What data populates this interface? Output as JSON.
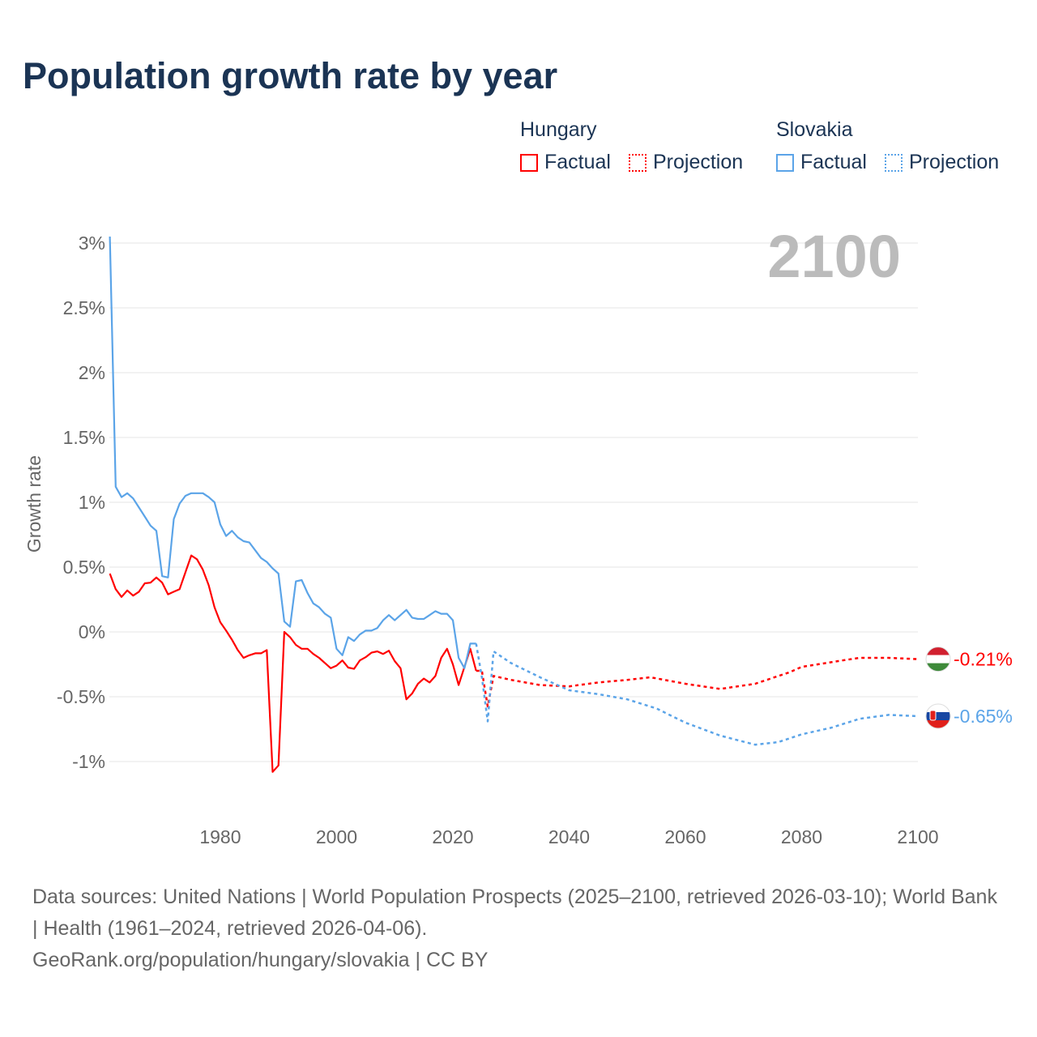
{
  "title": "Population growth rate by year",
  "legend": {
    "groups": [
      {
        "name": "Hungary",
        "factual": "Factual",
        "projection": "Projection",
        "color": "#ff0000"
      },
      {
        "name": "Slovakia",
        "factual": "Factual",
        "projection": "Projection",
        "color": "#5ba4e8"
      }
    ]
  },
  "year_label": "2100",
  "source_line1": "Data sources: United Nations | World Population Prospects (2025–2100, retrieved 2026-03-10); World Bank | Health (1961–2024, retrieved 2026-04-06).",
  "source_line2": "GeoRank.org/population/hungary/slovakia | CC BY",
  "chart_data": {
    "type": "line",
    "title": "Population growth rate by year",
    "ylabel": "Growth rate",
    "xlim": [
      1961,
      2100
    ],
    "ylim": [
      -1.25,
      3.0
    ],
    "xticks": [
      1980,
      2000,
      2020,
      2040,
      2060,
      2080,
      2100
    ],
    "xtick_labels": [
      "1980",
      "2000",
      "2020",
      "2040",
      "2060",
      "2080",
      "2100"
    ],
    "yticks": [
      3,
      2.5,
      2,
      1.5,
      1,
      0.5,
      0,
      -0.5,
      -1
    ],
    "ytick_labels": [
      "3%",
      "2.5%",
      "2%",
      "1.5%",
      "1%",
      "0.5%",
      "0%",
      "-0.5%",
      "-1%"
    ],
    "grid": true,
    "series": [
      {
        "name": "Hungary Factual",
        "country": "Hungary",
        "style": "solid",
        "color": "#ff0000",
        "x0": 1961,
        "values": [
          0.45,
          0.33,
          0.27,
          0.32,
          0.28,
          0.31,
          0.375,
          0.38,
          0.42,
          0.38,
          0.29,
          0.31,
          0.33,
          0.46,
          0.59,
          0.56,
          0.48,
          0.36,
          0.19,
          0.075,
          0.01,
          -0.06,
          -0.14,
          -0.2,
          -0.18,
          -0.165,
          -0.165,
          -0.14,
          -1.08,
          -1.03,
          0.0,
          -0.04,
          -0.1,
          -0.13,
          -0.13,
          -0.17,
          -0.2,
          -0.24,
          -0.28,
          -0.26,
          -0.22,
          -0.275,
          -0.285,
          -0.22,
          -0.195,
          -0.16,
          -0.15,
          -0.17,
          -0.145,
          -0.225,
          -0.28,
          -0.52,
          -0.475,
          -0.4,
          -0.36,
          -0.39,
          -0.34,
          -0.2,
          -0.13,
          -0.25,
          -0.41,
          -0.27,
          -0.13,
          -0.3
        ]
      },
      {
        "name": "Hungary Projection",
        "country": "Hungary",
        "style": "dotted",
        "color": "#ff0000",
        "x": [
          2024,
          2025,
          2026,
          2027,
          2030,
          2035,
          2040,
          2045,
          2050,
          2054,
          2060,
          2066,
          2072,
          2078,
          2080,
          2087,
          2090,
          2095,
          2100
        ],
        "values": [
          -0.3,
          -0.3,
          -0.575,
          -0.34,
          -0.37,
          -0.41,
          -0.42,
          -0.39,
          -0.37,
          -0.35,
          -0.4,
          -0.44,
          -0.4,
          -0.31,
          -0.27,
          -0.22,
          -0.2,
          -0.2,
          -0.21
        ]
      },
      {
        "name": "Slovakia Factual",
        "country": "Slovakia",
        "style": "solid",
        "color": "#5ba4e8",
        "x0": 1961,
        "values": [
          3.05,
          1.12,
          1.04,
          1.07,
          1.03,
          0.96,
          0.89,
          0.82,
          0.78,
          0.43,
          0.42,
          0.87,
          0.99,
          1.05,
          1.07,
          1.07,
          1.07,
          1.04,
          1.0,
          0.83,
          0.74,
          0.78,
          0.73,
          0.7,
          0.69,
          0.63,
          0.57,
          0.54,
          0.49,
          0.45,
          0.08,
          0.04,
          0.39,
          0.4,
          0.3,
          0.22,
          0.19,
          0.14,
          0.11,
          -0.13,
          -0.18,
          -0.04,
          -0.07,
          -0.02,
          0.01,
          0.01,
          0.03,
          0.09,
          0.13,
          0.09,
          0.13,
          0.17,
          0.11,
          0.1,
          0.1,
          0.13,
          0.16,
          0.14,
          0.14,
          0.09,
          -0.2,
          -0.28,
          -0.09,
          -0.09
        ]
      },
      {
        "name": "Slovakia Projection",
        "country": "Slovakia",
        "style": "dotted",
        "color": "#5ba4e8",
        "x": [
          2024,
          2025,
          2026,
          2027,
          2030,
          2035,
          2040,
          2045,
          2050,
          2055,
          2060,
          2066,
          2072,
          2076,
          2080,
          2085,
          2090,
          2095,
          2100
        ],
        "values": [
          -0.09,
          -0.35,
          -0.69,
          -0.15,
          -0.24,
          -0.35,
          -0.45,
          -0.48,
          -0.52,
          -0.59,
          -0.7,
          -0.8,
          -0.87,
          -0.85,
          -0.79,
          -0.74,
          -0.67,
          -0.64,
          -0.65
        ]
      }
    ],
    "end_labels": [
      {
        "country": "Hungary",
        "text": "-0.21%",
        "value": -0.21,
        "color": "#ff0000"
      },
      {
        "country": "Slovakia",
        "text": "-0.65%",
        "value": -0.65,
        "color": "#5ba4e8"
      }
    ]
  }
}
